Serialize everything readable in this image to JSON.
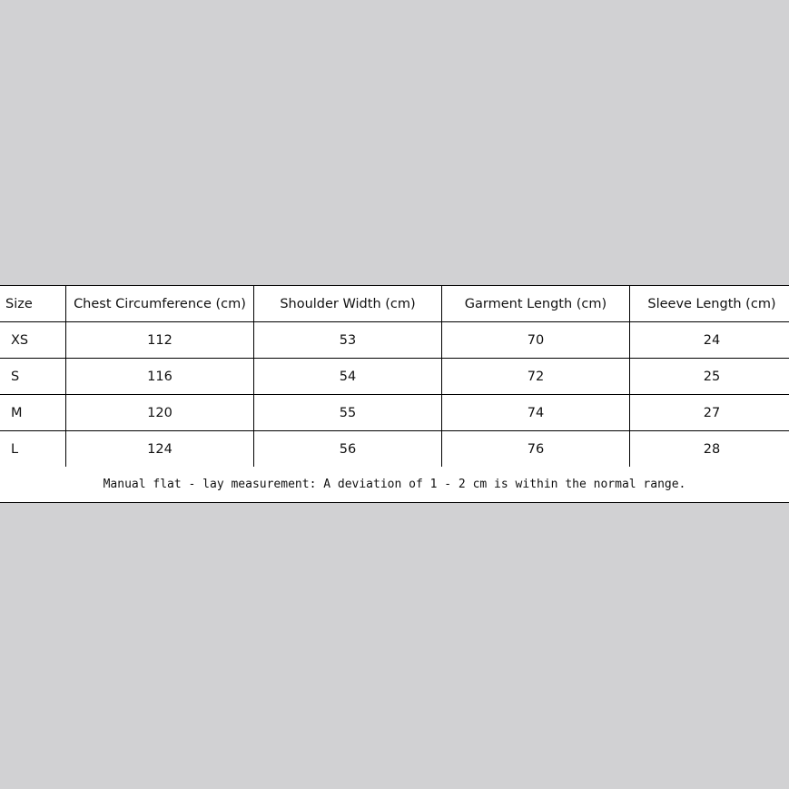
{
  "table": {
    "headers": [
      "Size",
      "Chest Circumference (cm)",
      "Shoulder Width (cm)",
      "Garment Length (cm)",
      "Sleeve Length (cm)"
    ],
    "rows": [
      [
        "XS",
        "112",
        "53",
        "70",
        "24"
      ],
      [
        "S",
        "116",
        "54",
        "72",
        "25"
      ],
      [
        "M",
        "120",
        "55",
        "74",
        "27"
      ],
      [
        "L",
        "124",
        "56",
        "76",
        "28"
      ]
    ],
    "note": "Manual flat - lay measurement: A deviation of 1 - 2 cm is within the normal range."
  }
}
